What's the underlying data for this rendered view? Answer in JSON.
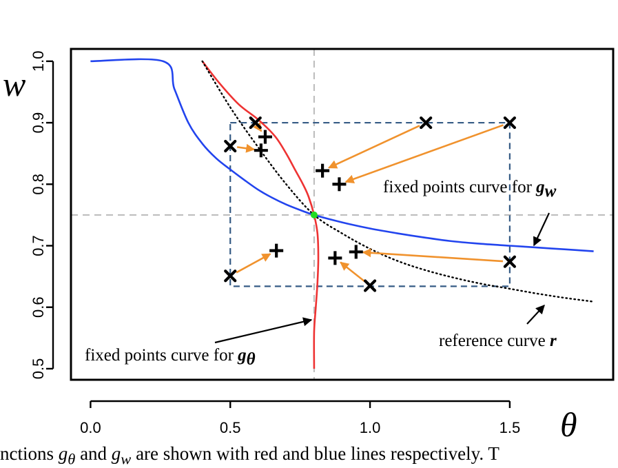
{
  "chart_data": {
    "type": "line",
    "xlabel": "θ",
    "ylabel": "w",
    "xlim": [
      -0.07,
      1.87
    ],
    "ylim": [
      0.482,
      1.02
    ],
    "xticks": [
      0.0,
      0.5,
      1.0,
      1.5
    ],
    "yticks": [
      0.5,
      0.6,
      0.7,
      0.8,
      0.9,
      1.0
    ],
    "xtick_labels": [
      "0.0",
      "0.5",
      "1.0",
      "1.5"
    ],
    "ytick_labels": [
      "0.5",
      "0.6",
      "0.7",
      "0.8",
      "0.9",
      "1.0"
    ],
    "fixed_point": {
      "x": 0.8,
      "y": 0.75,
      "color": "#22dd22"
    },
    "guide_lines": {
      "vertical_x": 0.8,
      "horizontal_y": 0.75
    },
    "dashed_box": {
      "x": [
        0.5,
        1.5
      ],
      "y": [
        0.634,
        0.9
      ]
    },
    "series": [
      {
        "name": "fixed points curve for g_w",
        "color": "#2244ee",
        "style": "solid",
        "x": [
          0.0,
          0.26,
          0.3,
          0.35,
          0.4,
          0.45,
          0.5,
          0.55,
          0.6,
          0.65,
          0.7,
          0.75,
          0.8,
          0.9,
          1.0,
          1.1,
          1.2,
          1.3,
          1.4,
          1.5,
          1.6,
          1.7,
          1.8
        ],
        "y": [
          1.0,
          1.0,
          0.955,
          0.9,
          0.866,
          0.842,
          0.824,
          0.807,
          0.791,
          0.778,
          0.767,
          0.758,
          0.75,
          0.738,
          0.728,
          0.72,
          0.713,
          0.707,
          0.703,
          0.7,
          0.697,
          0.694,
          0.691
        ]
      },
      {
        "name": "fixed points curve for g_θ",
        "color": "#ee3333",
        "style": "solid",
        "x": [
          0.4,
          0.46,
          0.53,
          0.6,
          0.66,
          0.7,
          0.73,
          0.76,
          0.78,
          0.8,
          0.812,
          0.815,
          0.812,
          0.806,
          0.8,
          0.8
        ],
        "y": [
          1.0,
          0.965,
          0.93,
          0.905,
          0.878,
          0.85,
          0.825,
          0.8,
          0.78,
          0.75,
          0.72,
          0.68,
          0.64,
          0.6,
          0.56,
          0.5
        ]
      },
      {
        "name": "reference curve r",
        "color": "#000000",
        "style": "dotted",
        "x": [
          0.4,
          0.5,
          0.6,
          0.7,
          0.8,
          0.9,
          1.0,
          1.1,
          1.2,
          1.3,
          1.4,
          1.5,
          1.6,
          1.7,
          1.8
        ],
        "y": [
          1.0,
          0.925,
          0.86,
          0.8,
          0.75,
          0.72,
          0.695,
          0.675,
          0.66,
          0.648,
          0.638,
          0.63,
          0.622,
          0.615,
          0.609
        ]
      }
    ],
    "arrows": [
      {
        "from": [
          0.59,
          0.9
        ],
        "to": [
          0.625,
          0.877
        ]
      },
      {
        "from": [
          0.5,
          0.862
        ],
        "to": [
          0.61,
          0.855
        ]
      },
      {
        "from": [
          1.2,
          0.9
        ],
        "to": [
          0.83,
          0.822
        ]
      },
      {
        "from": [
          1.5,
          0.9
        ],
        "to": [
          0.89,
          0.8
        ]
      },
      {
        "from": [
          0.5,
          0.651
        ],
        "to": [
          0.665,
          0.692
        ]
      },
      {
        "from": [
          1.5,
          0.674
        ],
        "to": [
          0.95,
          0.69
        ]
      },
      {
        "from": [
          1.0,
          0.635
        ],
        "to": [
          0.875,
          0.68
        ]
      }
    ],
    "x_markers": [
      [
        0.59,
        0.9
      ],
      [
        0.5,
        0.862
      ],
      [
        1.2,
        0.9
      ],
      [
        1.5,
        0.9
      ],
      [
        0.5,
        0.651
      ],
      [
        1.5,
        0.674
      ],
      [
        1.0,
        0.635
      ]
    ],
    "plus_markers": [
      [
        0.625,
        0.877
      ],
      [
        0.61,
        0.855
      ],
      [
        0.83,
        0.822
      ],
      [
        0.89,
        0.8
      ],
      [
        0.665,
        0.692
      ],
      [
        0.95,
        0.69
      ],
      [
        0.875,
        0.68
      ]
    ],
    "annotations": [
      {
        "text": "fixed points curve for ",
        "symbol": "g",
        "subscript": "w"
      },
      {
        "text": "fixed points curve for ",
        "symbol": "g",
        "subscript": "θ"
      },
      {
        "text": "reference curve ",
        "symbol": "r",
        "subscript": ""
      }
    ]
  },
  "caption": {
    "part1": "nctions ",
    "sym1": "g",
    "sub1": "θ",
    "part2": " and ",
    "sym2": "g",
    "sub2": "w",
    "part3": " are shown with red and blue lines respectively. T"
  }
}
